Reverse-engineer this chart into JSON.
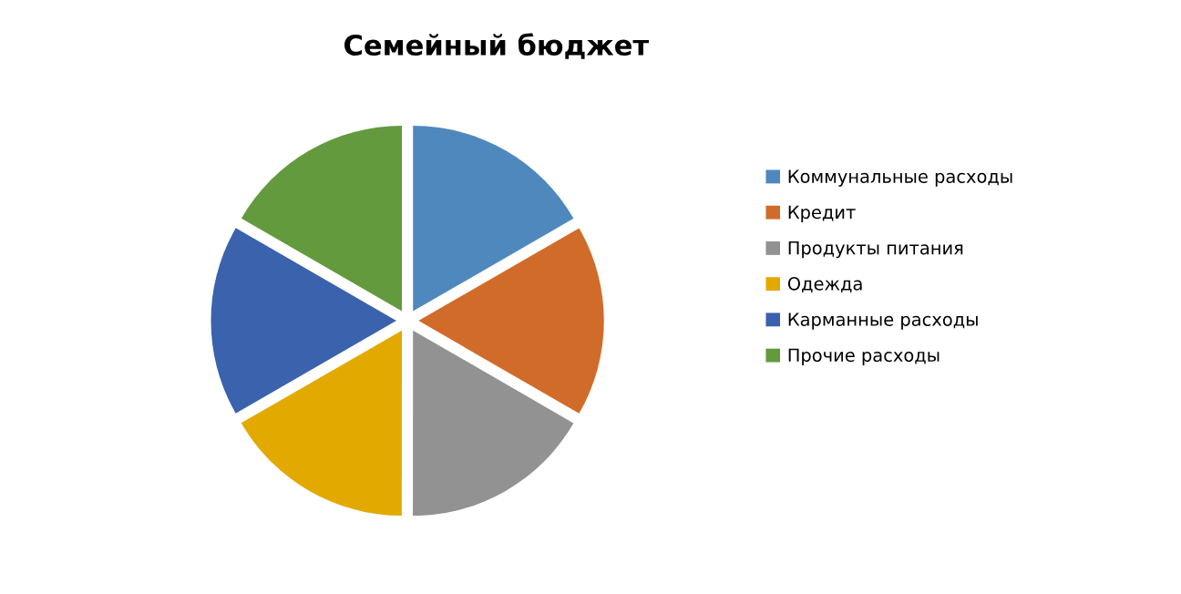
{
  "chart_data": {
    "type": "pie",
    "title": "Семейный бюджет",
    "categories": [
      "Коммунальные расходы",
      "Кредит",
      "Продукты питания",
      "Одежда",
      "Карманные расходы",
      "Прочие расходы"
    ],
    "values": [
      16.67,
      16.67,
      16.67,
      16.67,
      16.66,
      16.66
    ],
    "colors": [
      "#4e88bd",
      "#d16b2a",
      "#929292",
      "#e2aa00",
      "#3a62ad",
      "#629a3d"
    ],
    "legend": "right"
  }
}
